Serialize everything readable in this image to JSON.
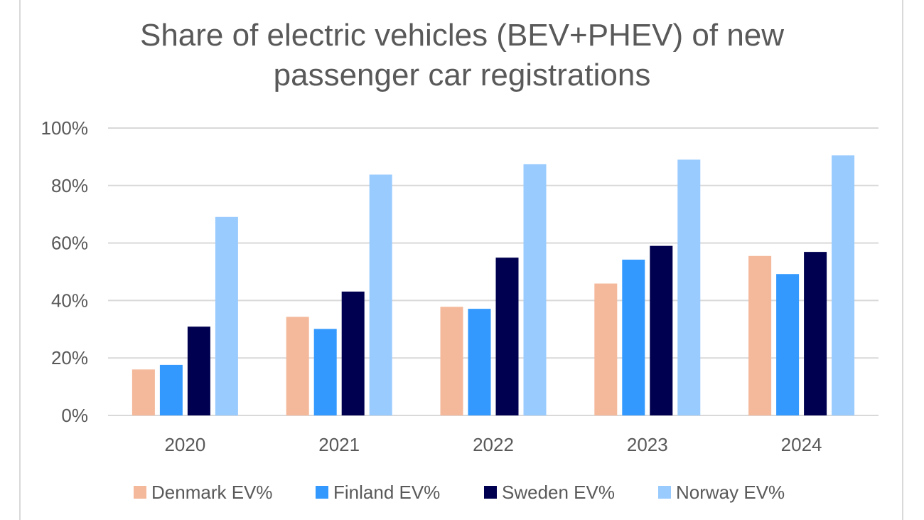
{
  "chart_data": {
    "type": "bar",
    "title": "Share of electric vehicles (BEV+PHEV) of new passenger car registrations",
    "title_lines": [
      "Share of electric vehicles (BEV+PHEV) of new",
      "passenger car registrations"
    ],
    "xlabel": "",
    "ylabel": "",
    "categories": [
      "2020",
      "2021",
      "2022",
      "2023",
      "2024"
    ],
    "ylim": [
      0,
      100
    ],
    "yticks": [
      0,
      20,
      40,
      60,
      80,
      100
    ],
    "ytick_labels": [
      "0%",
      "20%",
      "40%",
      "60%",
      "80%",
      "100%"
    ],
    "grid": true,
    "legend_position": "bottom",
    "series": [
      {
        "name": "Denmark EV%",
        "color": "#f4b99b",
        "values": [
          16,
          34.3,
          37.8,
          45.9,
          55.5
        ]
      },
      {
        "name": "Finland EV%",
        "color": "#3399ff",
        "values": [
          17.6,
          30.1,
          37.1,
          54.2,
          49.2
        ]
      },
      {
        "name": "Sweden EV%",
        "color": "#000050",
        "values": [
          30.9,
          43.1,
          54.9,
          59.0,
          56.9
        ]
      },
      {
        "name": "Norway EV%",
        "color": "#99cbff",
        "values": [
          69.1,
          83.8,
          87.4,
          89.0,
          90.5
        ]
      }
    ]
  }
}
